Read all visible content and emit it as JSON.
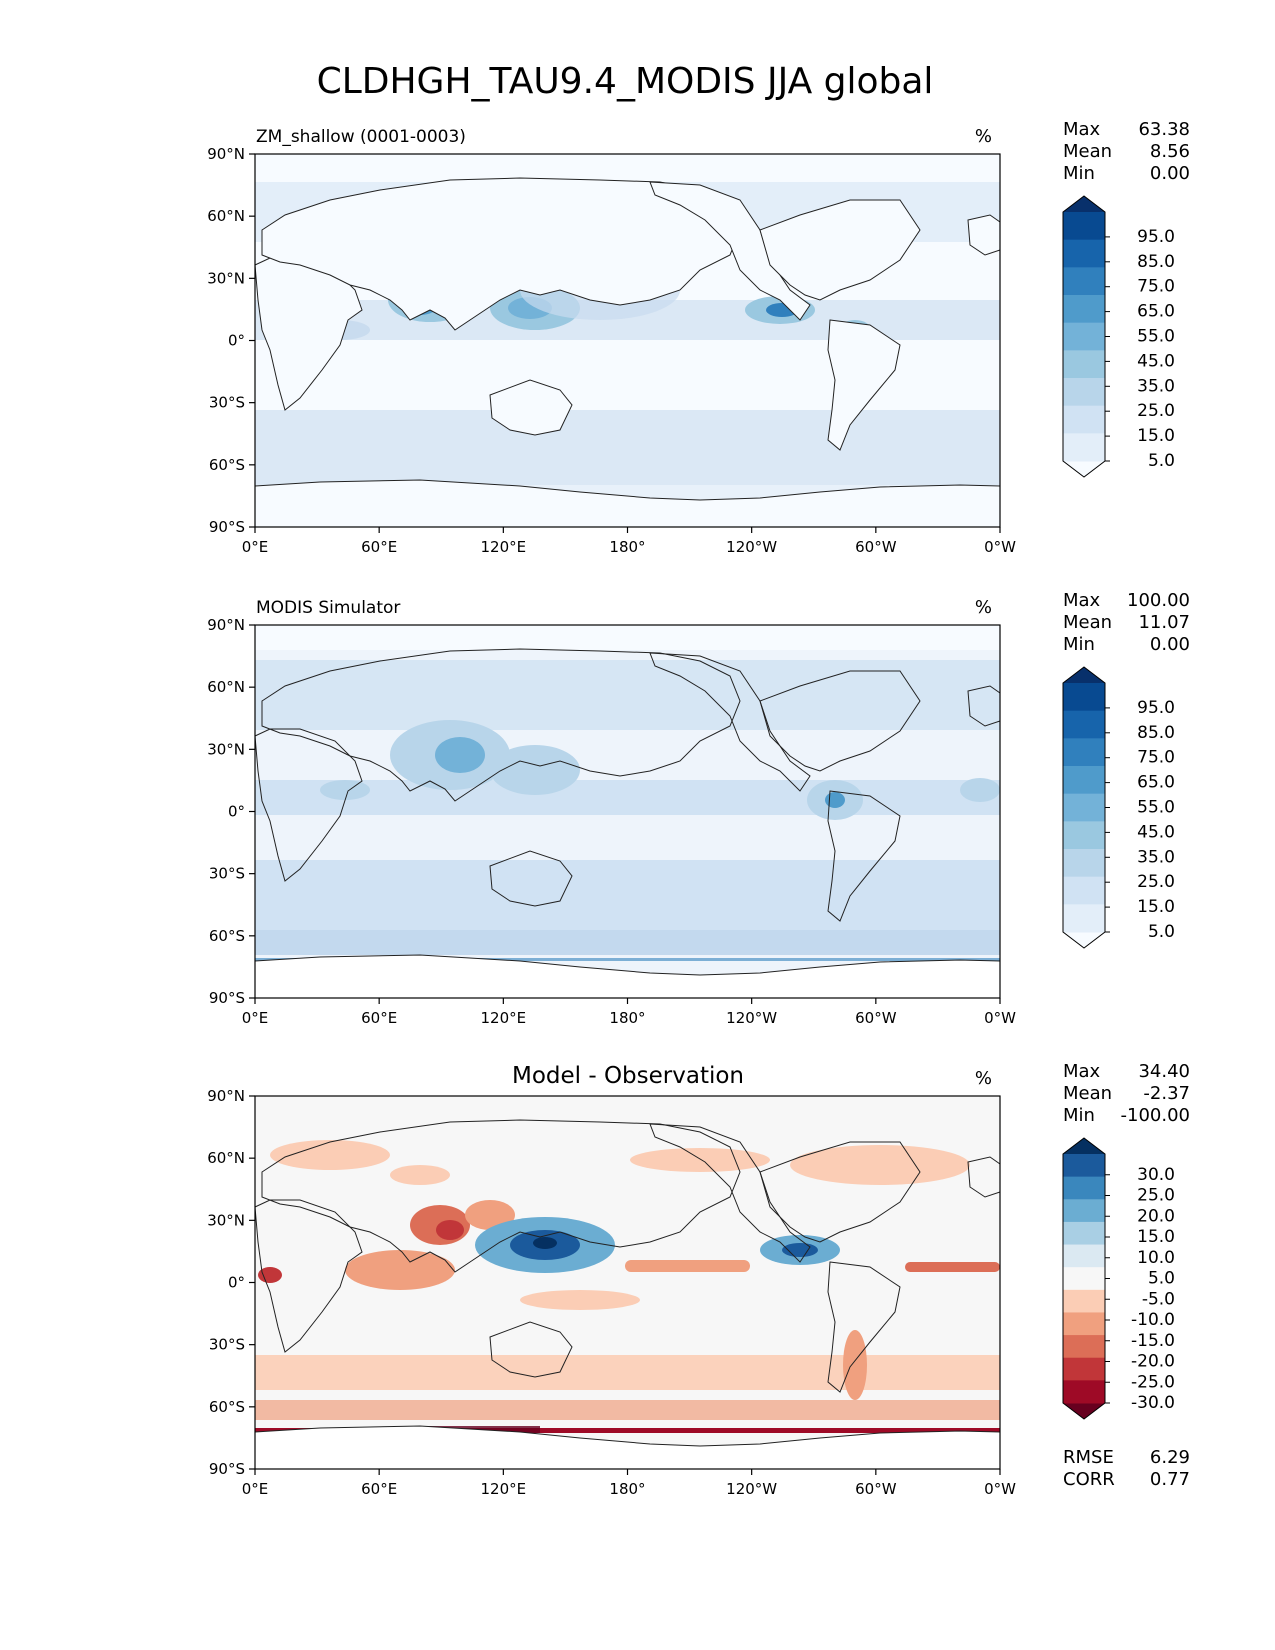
{
  "title": "CLDHGH_TAU9.4_MODIS JJA global",
  "lon_ticks": [
    "0°E",
    "60°E",
    "120°E",
    "180°",
    "120°W",
    "60°W",
    "0°W"
  ],
  "lat_ticks": [
    "90°N",
    "60°N",
    "30°N",
    "0°",
    "30°S",
    "60°S",
    "90°S"
  ],
  "panels": [
    {
      "label_left": "ZM_shallow (0001-0003)",
      "label_center": "",
      "units": "%",
      "stats": [
        {
          "label": "Max",
          "value": "63.38"
        },
        {
          "label": "Mean",
          "value": "8.56"
        },
        {
          "label": "Min",
          "value": "0.00"
        }
      ],
      "colorbar": {
        "ticks": [
          "95.0",
          "85.0",
          "75.0",
          "65.0",
          "55.0",
          "45.0",
          "35.0",
          "25.0",
          "15.0",
          "5.0"
        ],
        "colors": [
          "#f7fbff",
          "#e3eef9",
          "#d0e2f3",
          "#b8d5ea",
          "#9ac8e0",
          "#73b2d8",
          "#4f9bcb",
          "#3080bd",
          "#1764ab",
          "#084a91",
          "#08306b"
        ]
      }
    },
    {
      "label_left": "MODIS Simulator",
      "label_center": "",
      "units": "%",
      "stats": [
        {
          "label": "Max",
          "value": "100.00"
        },
        {
          "label": "Mean",
          "value": "11.07"
        },
        {
          "label": "Min",
          "value": "0.00"
        }
      ],
      "colorbar": {
        "ticks": [
          "95.0",
          "85.0",
          "75.0",
          "65.0",
          "55.0",
          "45.0",
          "35.0",
          "25.0",
          "15.0",
          "5.0"
        ],
        "colors": [
          "#f7fbff",
          "#e3eef9",
          "#d0e2f3",
          "#b8d5ea",
          "#9ac8e0",
          "#73b2d8",
          "#4f9bcb",
          "#3080bd",
          "#1764ab",
          "#084a91",
          "#08306b"
        ]
      }
    },
    {
      "label_left": "",
      "label_center": "Model - Observation",
      "units": "%",
      "stats": [
        {
          "label": "Max",
          "value": "34.40"
        },
        {
          "label": "Mean",
          "value": "-2.37"
        },
        {
          "label": "Min",
          "value": "-100.00"
        }
      ],
      "footer_stats": [
        {
          "label": "RMSE",
          "value": "6.29"
        },
        {
          "label": "CORR",
          "value": "0.77"
        }
      ],
      "colorbar": {
        "ticks": [
          "30.0",
          "25.0",
          "20.0",
          "15.0",
          "10.0",
          "5.0",
          "-5.0",
          "-10.0",
          "-15.0",
          "-20.0",
          "-25.0",
          "-30.0"
        ],
        "colors": [
          "#67001f",
          "#9e0a26",
          "#c13639",
          "#dc6e57",
          "#f0a07f",
          "#fbcdb5",
          "#f7f7f7",
          "#dbe9f2",
          "#a9cfe4",
          "#6badd2",
          "#3a87bd",
          "#1b5a9c",
          "#053061"
        ]
      }
    }
  ]
}
